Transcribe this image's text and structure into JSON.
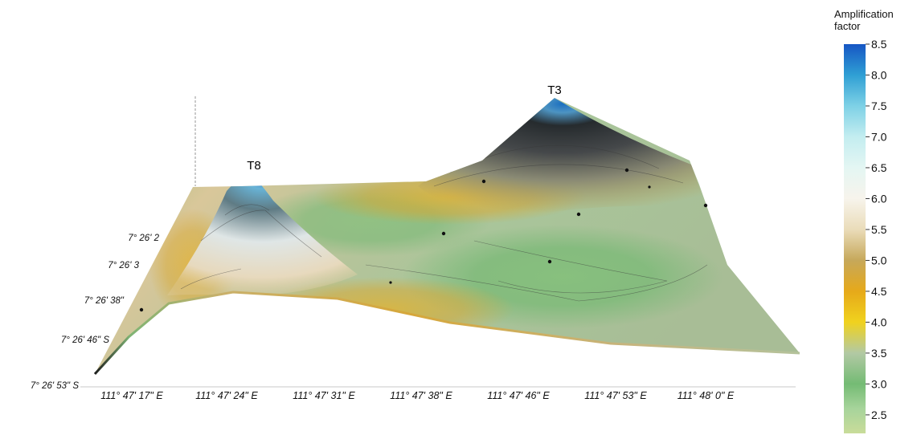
{
  "chart_data": {
    "type": "surface",
    "title": "",
    "xlabel": "",
    "ylabel": "",
    "x_ticks": [
      "111° 47' 17\" E",
      "111° 47' 24\" E",
      "111° 47' 31\" E",
      "111° 47' 38\" E",
      "111° 47' 46\" E",
      "111° 47' 53\" E",
      "111° 48' 0\" E"
    ],
    "y_ticks": [
      "7° 26' 53\" S",
      "7° 26' 46\" S",
      "7° 26' 38\"",
      "7° 26' 3",
      "7° 26' 2"
    ],
    "peaks": [
      {
        "name": "T3",
        "value": 8.5
      },
      {
        "name": "T8",
        "value": 8.3
      }
    ],
    "colorbar": {
      "title_lines": [
        "Amplification",
        "factor"
      ],
      "min": 2.2,
      "max": 8.5,
      "ticks": [
        "8.5",
        "8.0",
        "7.5",
        "7.0",
        "6.5",
        "6.0",
        "5.5",
        "5.0",
        "4.5",
        "4.0",
        "3.5",
        "3.0",
        "2.5"
      ],
      "stops": [
        {
          "value": 2.2,
          "color": "#c9dc9a"
        },
        {
          "value": 2.6,
          "color": "#a7d49b"
        },
        {
          "value": 3.0,
          "color": "#74bb74"
        },
        {
          "value": 3.5,
          "color": "#b2c9a4"
        },
        {
          "value": 4.0,
          "color": "#f0d21e"
        },
        {
          "value": 4.5,
          "color": "#e6a91a"
        },
        {
          "value": 5.0,
          "color": "#c6a85a"
        },
        {
          "value": 5.5,
          "color": "#eadcb9"
        },
        {
          "value": 6.0,
          "color": "#f7f4ec"
        },
        {
          "value": 6.5,
          "color": "#e4f6f3"
        },
        {
          "value": 7.0,
          "color": "#c3edf0"
        },
        {
          "value": 7.5,
          "color": "#7ed1e6"
        },
        {
          "value": 8.0,
          "color": "#2f9fd4"
        },
        {
          "value": 8.5,
          "color": "#1656c4"
        }
      ]
    }
  }
}
